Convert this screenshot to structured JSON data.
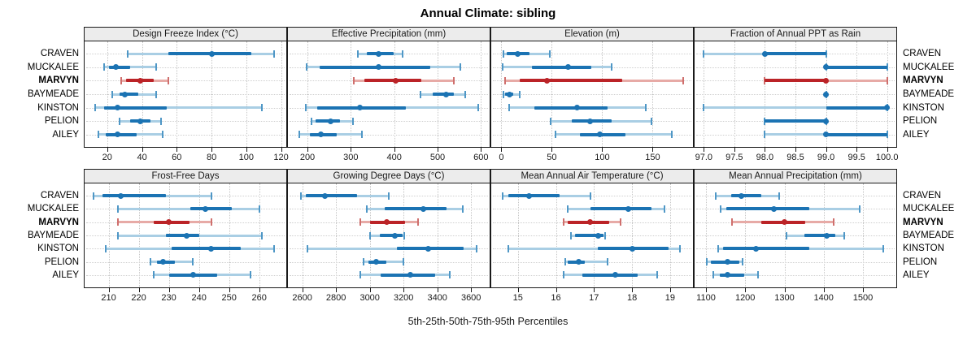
{
  "title": "Annual Climate: sibling",
  "footer": "5th-25th-50th-75th-95th Percentiles",
  "series_labels": [
    "CRAVEN",
    "MUCKALEE",
    "MARVYN",
    "BAYMEADE",
    "KINSTON",
    "PELION",
    "AILEY"
  ],
  "highlight_series": "MARVYN",
  "colors": {
    "blue_dark": "#1b73b3",
    "blue_light": "#a9cee4",
    "blue_cap": "#4f97c6",
    "red_dark": "#bb2327",
    "red_light": "#e7aaa6",
    "red_cap": "#cf6f6d",
    "header_bg": "#ececec",
    "panel_border": "#1a1a1a",
    "grid": "#c6c6c6"
  },
  "percentile_legend": [
    "p5",
    "p25",
    "p50",
    "p75",
    "p95"
  ],
  "chart_data": [
    {
      "type": "scatter",
      "subtype": "percentile-dotplot",
      "title": "Design Freeze Index (°C)",
      "xlim": [
        7,
        123
      ],
      "ticks": [
        20,
        40,
        60,
        80,
        100,
        120
      ],
      "tick_labels": [
        "20",
        "40",
        "60",
        "80",
        "100",
        "120"
      ],
      "rows": {
        "CRAVEN": [
          32,
          55,
          80,
          103,
          116
        ],
        "MUCKALEE": [
          18,
          21,
          25,
          33,
          48
        ],
        "MARVYN": [
          28,
          31,
          39,
          47,
          55
        ],
        "BAYMEADE": [
          23,
          27,
          30,
          38,
          48
        ],
        "KINSTON": [
          13,
          18,
          26,
          54,
          109
        ],
        "PELION": [
          27,
          33,
          39,
          45,
          51
        ],
        "AILEY": [
          15,
          19,
          26,
          37,
          52
        ]
      }
    },
    {
      "type": "scatter",
      "subtype": "percentile-dotplot",
      "title": "Effective Precipitation (mm)",
      "xlim": [
        155,
        620
      ],
      "ticks": [
        200,
        300,
        400,
        500,
        600
      ],
      "tick_labels": [
        "200",
        "300",
        "400",
        "500",
        "600"
      ],
      "rows": {
        "CRAVEN": [
          317,
          336,
          364,
          398,
          420
        ],
        "MUCKALEE": [
          198,
          228,
          364,
          483,
          552
        ],
        "MARVYN": [
          306,
          332,
          404,
          463,
          538
        ],
        "BAYMEADE": [
          460,
          488,
          519,
          538,
          563
        ],
        "KINSTON": [
          196,
          223,
          321,
          426,
          594
        ],
        "PELION": [
          210,
          218,
          254,
          276,
          304
        ],
        "AILEY": [
          182,
          206,
          231,
          267,
          325
        ]
      }
    },
    {
      "type": "scatter",
      "subtype": "percentile-dotplot",
      "title": "Elevation (m)",
      "xlim": [
        -10,
        190
      ],
      "ticks": [
        0,
        50,
        100,
        150
      ],
      "tick_labels": [
        "0",
        "50",
        "100",
        "150"
      ],
      "rows": {
        "CRAVEN": [
          2,
          5,
          16,
          28,
          48
        ],
        "MUCKALEE": [
          1,
          30,
          66,
          89,
          109
        ],
        "MARVYN": [
          4,
          18,
          45,
          120,
          180
        ],
        "BAYMEADE": [
          2,
          4,
          8,
          12,
          18
        ],
        "KINSTON": [
          8,
          33,
          75,
          105,
          143
        ],
        "PELION": [
          49,
          70,
          88,
          109,
          149
        ],
        "AILEY": [
          54,
          78,
          98,
          123,
          169
        ]
      }
    },
    {
      "type": "scatter",
      "subtype": "percentile-dotplot",
      "title": "Fraction of Annual PPT as Rain",
      "xlim": [
        96.85,
        100.15
      ],
      "ticks": [
        97.0,
        97.5,
        98.0,
        98.5,
        99.0,
        99.5,
        100.0
      ],
      "tick_labels": [
        "97.0",
        "97.5",
        "98.0",
        "98.5",
        "99.0",
        "99.5",
        "100.0"
      ],
      "rows": {
        "CRAVEN": [
          97,
          98,
          98,
          99,
          99
        ],
        "MUCKALEE": [
          99,
          99,
          99,
          100,
          100
        ],
        "MARVYN": [
          98,
          98,
          99,
          99,
          100
        ],
        "BAYMEADE": [
          99,
          99,
          99,
          99,
          99
        ],
        "KINSTON": [
          97,
          99,
          100,
          100,
          100
        ],
        "PELION": [
          98,
          98,
          99,
          99,
          99
        ],
        "AILEY": [
          98,
          99,
          99,
          100,
          100
        ]
      }
    },
    {
      "type": "scatter",
      "subtype": "percentile-dotplot",
      "title": "Frost-Free Days",
      "xlim": [
        202,
        269
      ],
      "ticks": [
        210,
        220,
        230,
        240,
        250,
        260
      ],
      "tick_labels": [
        "210",
        "220",
        "230",
        "240",
        "250",
        "260"
      ],
      "rows": {
        "CRAVEN": [
          205,
          208,
          214,
          229,
          244
        ],
        "MUCKALEE": [
          213,
          237,
          242,
          251,
          260
        ],
        "MARVYN": [
          213,
          225,
          230,
          237,
          244
        ],
        "BAYMEADE": [
          213,
          229,
          236,
          240,
          261
        ],
        "KINSTON": [
          209,
          231,
          244,
          254,
          265
        ],
        "PELION": [
          224,
          226,
          228,
          232,
          238
        ],
        "AILEY": [
          225,
          230,
          238,
          246,
          257
        ]
      }
    },
    {
      "type": "scatter",
      "subtype": "percentile-dotplot",
      "title": "Growing Degree Days (°C)",
      "xlim": [
        2515,
        3710
      ],
      "ticks": [
        2600,
        2800,
        3000,
        3200,
        3400,
        3600
      ],
      "tick_labels": [
        "2600",
        "2800",
        "3000",
        "3200",
        "3400",
        "3600"
      ],
      "rows": {
        "CRAVEN": [
          2590,
          2620,
          2735,
          2925,
          3110
        ],
        "MUCKALEE": [
          2980,
          3090,
          3315,
          3455,
          3553
        ],
        "MARVYN": [
          2943,
          3003,
          3098,
          3208,
          3284
        ],
        "BAYMEADE": [
          3000,
          3060,
          3150,
          3193,
          3206
        ],
        "KINSTON": [
          2632,
          3161,
          3348,
          3556,
          3635
        ],
        "PELION": [
          2965,
          2990,
          3038,
          3098,
          3200
        ],
        "AILEY": [
          2943,
          3066,
          3240,
          3390,
          3474
        ]
      }
    },
    {
      "type": "scatter",
      "subtype": "percentile-dotplot",
      "title": "Mean Annual Air Temperature (°C)",
      "xlim": [
        14.3,
        19.6
      ],
      "ticks": [
        15,
        16,
        17,
        18,
        19
      ],
      "tick_labels": [
        "15",
        "16",
        "17",
        "18",
        "19"
      ],
      "rows": {
        "CRAVEN": [
          14.6,
          14.75,
          15.3,
          16.1,
          16.9
        ],
        "MUCKALEE": [
          16.3,
          16.9,
          17.9,
          18.5,
          18.85
        ],
        "MARVYN": [
          16.2,
          16.3,
          16.9,
          17.4,
          17.7
        ],
        "BAYMEADE": [
          16.4,
          16.5,
          17.1,
          17.25,
          17.3
        ],
        "KINSTON": [
          14.75,
          17.1,
          18.0,
          18.95,
          19.25
        ],
        "PELION": [
          16.25,
          16.3,
          16.6,
          16.75,
          17.35
        ],
        "AILEY": [
          16.2,
          16.7,
          17.55,
          18.15,
          18.65
        ]
      }
    },
    {
      "type": "scatter",
      "subtype": "percentile-dotplot",
      "title": "Mean Annual Precipitation (mm)",
      "xlim": [
        1071,
        1585
      ],
      "ticks": [
        1100,
        1200,
        1300,
        1400,
        1500
      ],
      "tick_labels": [
        "1100",
        "1200",
        "1300",
        "1400",
        "1500"
      ],
      "rows": {
        "CRAVEN": [
          1125,
          1164,
          1191,
          1240,
          1286
        ],
        "MUCKALEE": [
          1138,
          1152,
          1274,
          1363,
          1492
        ],
        "MARVYN": [
          1167,
          1240,
          1299,
          1353,
          1425
        ],
        "BAYMEADE": [
          1306,
          1350,
          1407,
          1429,
          1453
        ],
        "KINSTON": [
          1130,
          1143,
          1228,
          1363,
          1552
        ],
        "PELION": [
          1102,
          1112,
          1154,
          1185,
          1194
        ],
        "AILEY": [
          1119,
          1136,
          1154,
          1198,
          1233
        ]
      }
    }
  ]
}
